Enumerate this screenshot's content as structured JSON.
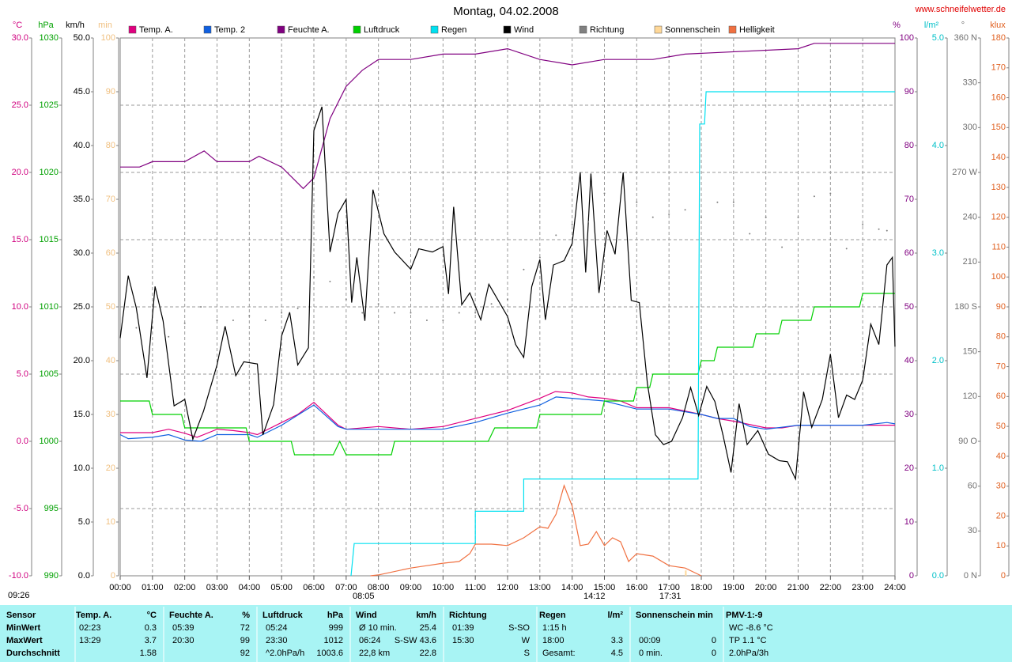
{
  "chart_data": {
    "type": "line",
    "title": "Montag, 04.02.2008",
    "source": "www.schneifelwetter.de",
    "xlim": [
      0,
      24
    ],
    "xticks": [
      {
        "value": 0,
        "label": "00:00"
      },
      {
        "value": 1,
        "label": "01:00"
      },
      {
        "value": 2,
        "label": "02:00"
      },
      {
        "value": 3,
        "label": "03:00"
      },
      {
        "value": 4,
        "label": "04:00"
      },
      {
        "value": 5,
        "label": "05:00"
      },
      {
        "value": 6,
        "label": "06:00"
      },
      {
        "value": 7,
        "label": "07:00"
      },
      {
        "value": 8,
        "label": "08:00"
      },
      {
        "value": 9,
        "label": "09:00"
      },
      {
        "value": 10,
        "label": "10:00"
      },
      {
        "value": 11,
        "label": "11:00"
      },
      {
        "value": 12,
        "label": "12:00"
      },
      {
        "value": 13,
        "label": "13:00"
      },
      {
        "value": 14,
        "label": "14:00"
      },
      {
        "value": 15,
        "label": "15:00"
      },
      {
        "value": 16,
        "label": "16:00"
      },
      {
        "value": 17,
        "label": "17:00"
      },
      {
        "value": 18,
        "label": "18:00"
      },
      {
        "value": 19,
        "label": "19:00"
      },
      {
        "value": 20,
        "label": "20:00"
      },
      {
        "value": 21,
        "label": "21:00"
      },
      {
        "value": 22,
        "label": "22:00"
      },
      {
        "value": 23,
        "label": "23:00"
      },
      {
        "value": 24,
        "label": "24:00"
      }
    ],
    "grid": true,
    "y_axes": [
      {
        "label": "°C",
        "color": "#d0007f",
        "ylim": [
          -10,
          30
        ],
        "yticks": [
          {
            "value": -10,
            "label": "-10.0"
          },
          {
            "value": -5,
            "label": "-5.0"
          },
          {
            "value": 0,
            "label": "0.0"
          },
          {
            "value": 5,
            "label": "5.0"
          },
          {
            "value": 10,
            "label": "10.0"
          },
          {
            "value": 15,
            "label": "15.0"
          },
          {
            "value": 20,
            "label": "20.0"
          },
          {
            "value": 25,
            "label": "25.0"
          },
          {
            "value": 30,
            "label": "30.0"
          }
        ]
      },
      {
        "label": "hPa",
        "color": "#00a000",
        "ylim": [
          990,
          1030
        ],
        "yticks": [
          990,
          995,
          1000,
          1005,
          1010,
          1015,
          1020,
          1025,
          1030
        ]
      },
      {
        "label": "km/h",
        "color": "#000000",
        "ylim": [
          0,
          50
        ],
        "yticks": [
          {
            "value": 0,
            "label": "0.0"
          },
          {
            "value": 5,
            "label": "5.0"
          },
          {
            "value": 10,
            "label": "10.0"
          },
          {
            "value": 15,
            "label": "15.0"
          },
          {
            "value": 20,
            "label": "20.0"
          },
          {
            "value": 25,
            "label": "25.0"
          },
          {
            "value": 30,
            "label": "30.0"
          },
          {
            "value": 35,
            "label": "35.0"
          },
          {
            "value": 40,
            "label": "40.0"
          },
          {
            "value": 45,
            "label": "45.0"
          },
          {
            "value": 50,
            "label": "50.0"
          }
        ]
      },
      {
        "label": "min",
        "color": "#f0c080",
        "ylim": [
          0,
          100
        ],
        "yticks": [
          0,
          10,
          20,
          30,
          40,
          50,
          60,
          70,
          80,
          90,
          100
        ]
      },
      {
        "label": "%",
        "color": "#800080",
        "ylim": [
          0,
          100
        ],
        "yticks": [
          0,
          10,
          20,
          30,
          40,
          50,
          60,
          70,
          80,
          90,
          100
        ]
      },
      {
        "label": "l/m²",
        "color": "#00c0c8",
        "ylim": [
          0,
          5
        ],
        "yticks": [
          {
            "value": 0,
            "label": "0.0"
          },
          {
            "value": 1,
            "label": "1.0"
          },
          {
            "value": 2,
            "label": "2.0"
          },
          {
            "value": 3,
            "label": "3.0"
          },
          {
            "value": 4,
            "label": "4.0"
          },
          {
            "value": 5,
            "label": "5.0"
          }
        ]
      },
      {
        "label": "°",
        "color": "#707070",
        "ylim": [
          0,
          360
        ],
        "yticks": [
          {
            "value": 0,
            "label": "0 N"
          },
          30,
          60,
          {
            "value": 90,
            "label": "90 O"
          },
          120,
          150,
          {
            "value": 180,
            "label": "180 S"
          },
          210,
          240,
          {
            "value": 270,
            "label": "270 W"
          },
          300,
          330,
          {
            "value": 360,
            "label": "360 N"
          }
        ]
      },
      {
        "label": "klux",
        "color": "#e06020",
        "ylim": [
          0,
          180
        ],
        "yticks": [
          0,
          10,
          20,
          30,
          40,
          50,
          60,
          70,
          80,
          90,
          100,
          110,
          120,
          130,
          140,
          150,
          160,
          170,
          180
        ]
      }
    ],
    "series": [
      {
        "name": "Temp. A.",
        "color": "#e0007f",
        "axis": 0,
        "style": "line",
        "x": [
          0,
          1,
          1.5,
          2,
          2.38,
          3,
          3.5,
          4,
          4.25,
          5,
          5.5,
          6,
          6.75,
          7,
          8,
          9,
          10,
          11,
          12,
          13,
          13.48,
          14,
          14.5,
          15,
          15.5,
          16,
          17,
          18,
          18.5,
          19,
          20,
          20.5,
          21,
          22,
          24
        ],
        "values": [
          0.65,
          0.65,
          0.9,
          0.6,
          0.3,
          0.9,
          0.8,
          0.65,
          0.5,
          1.4,
          2.0,
          2.9,
          1.2,
          0.9,
          1.1,
          0.9,
          1.1,
          1.7,
          2.3,
          3.2,
          3.7,
          3.6,
          3.3,
          3.2,
          3.0,
          2.5,
          2.5,
          2.0,
          1.7,
          1.5,
          1.0,
          1.0,
          1.2,
          1.2,
          1.2
        ]
      },
      {
        "name": "Temp. 2",
        "color": "#1060e0",
        "axis": 0,
        "style": "line",
        "x": [
          0,
          0.25,
          1,
          1.5,
          2,
          2.5,
          3,
          4,
          4.25,
          5,
          6,
          6.75,
          7,
          8,
          10,
          11,
          12,
          13,
          13.5,
          14,
          15,
          16,
          17,
          18,
          18.5,
          19,
          19.5,
          20,
          21,
          23,
          23.75,
          24
        ],
        "values": [
          0.5,
          0.2,
          0.3,
          0.5,
          0.1,
          0.0,
          0.5,
          0.5,
          0.3,
          1.2,
          2.7,
          1.1,
          0.9,
          0.9,
          0.9,
          1.4,
          2.1,
          2.7,
          3.3,
          3.2,
          3.0,
          2.4,
          2.4,
          2.0,
          1.7,
          1.7,
          1.1,
          0.9,
          1.2,
          1.2,
          1.4,
          1.3
        ]
      },
      {
        "name": "Feuchte A.",
        "color": "#800080",
        "axis": 4,
        "style": "line",
        "x": [
          0,
          0.6,
          1,
          2,
          2.6,
          3,
          4,
          4.3,
          5,
          5.67,
          6,
          6.5,
          7,
          7.5,
          8,
          9,
          10,
          11,
          12,
          13,
          14,
          15,
          16.5,
          17.5,
          21,
          21.5,
          24
        ],
        "values": [
          76,
          76,
          77,
          77,
          79,
          77,
          77,
          78,
          76,
          72,
          74,
          85,
          91,
          94,
          96,
          96,
          97,
          97,
          98,
          96,
          95,
          96,
          96,
          97,
          98,
          99,
          99
        ]
      },
      {
        "name": "Luftdruck",
        "color": "#00d000",
        "axis": 1,
        "style": "line",
        "x": [
          0,
          0.9,
          1,
          1.9,
          2,
          3.9,
          4,
          5.3,
          5.4,
          6.6,
          6.8,
          7,
          8.4,
          8.5,
          11.4,
          11.6,
          12.9,
          13,
          14.9,
          15,
          15.9,
          16,
          16.4,
          16.5,
          17.9,
          18,
          18.4,
          18.5,
          19.6,
          19.7,
          20.4,
          20.5,
          21.4,
          21.5,
          22.9,
          23,
          24
        ],
        "values": [
          1003,
          1003,
          1002,
          1002,
          1001,
          1001,
          1000,
          1000,
          999,
          999,
          1000,
          999,
          999,
          1000,
          1000,
          1001,
          1001,
          1002,
          1002,
          1003,
          1003,
          1004,
          1004,
          1005,
          1005,
          1006,
          1006,
          1007,
          1007,
          1008,
          1008,
          1009,
          1009,
          1010,
          1010,
          1011,
          1011
        ]
      },
      {
        "name": "Regen",
        "color": "#00e0f0",
        "axis": 5,
        "style": "line",
        "x": [
          7.15,
          7.25,
          7.25,
          11,
          11,
          12.5,
          12.5,
          17.9,
          17.95,
          18.1,
          18.15,
          24
        ],
        "values": [
          0,
          0.3,
          0.3,
          0.3,
          0.6,
          0.6,
          0.9,
          0.9,
          4.2,
          4.2,
          4.5,
          4.5
        ]
      },
      {
        "name": "Wind",
        "color": "#000000",
        "axis": 2,
        "style": "line",
        "x": [
          0,
          0.25,
          0.5,
          0.83,
          1.08,
          1.33,
          1.67,
          2,
          2.25,
          2.58,
          3,
          3.25,
          3.58,
          3.83,
          4.25,
          4.42,
          4.75,
          5,
          5.25,
          5.5,
          5.83,
          6,
          6.25,
          6.5,
          6.75,
          7,
          7.17,
          7.33,
          7.58,
          7.83,
          8.17,
          8.5,
          9,
          9.25,
          9.67,
          10,
          10.17,
          10.33,
          10.58,
          10.83,
          11.17,
          11.42,
          12,
          12.25,
          12.5,
          12.75,
          13,
          13.17,
          13.42,
          13.75,
          14,
          14.25,
          14.42,
          14.58,
          14.83,
          15.08,
          15.33,
          15.58,
          15.83,
          16.08,
          16.33,
          16.58,
          16.83,
          17.08,
          17.42,
          17.67,
          17.92,
          18.17,
          18.42,
          18.67,
          18.92,
          19.17,
          19.42,
          19.75,
          20.08,
          20.42,
          20.67,
          20.92,
          21.17,
          21.42,
          21.75,
          22,
          22.25,
          22.5,
          22.75,
          23,
          23.25,
          23.5,
          23.75,
          23.92,
          24
        ],
        "values": [
          22.1,
          27.9,
          24.9,
          18.4,
          26.9,
          23.7,
          15.8,
          16.4,
          12.7,
          15.3,
          19.6,
          23.2,
          18.6,
          19.9,
          19.7,
          13.1,
          15.9,
          22.3,
          24.5,
          19.6,
          21.2,
          41.4,
          43.6,
          30.1,
          33.7,
          35.0,
          25.4,
          29.6,
          23.7,
          35.9,
          31.8,
          30.1,
          28.5,
          30.4,
          30.1,
          30.6,
          26.2,
          34.3,
          25.2,
          26.3,
          23.8,
          27.1,
          24.1,
          21.5,
          20.3,
          26.9,
          29.4,
          23.8,
          28.9,
          29.3,
          30.9,
          37.5,
          28.2,
          37.4,
          26.3,
          32.1,
          29.9,
          37.5,
          25.6,
          25.4,
          17.9,
          13.1,
          12.2,
          12.5,
          14.7,
          17.5,
          14.9,
          17.6,
          16.2,
          13.1,
          9.6,
          16.0,
          12.2,
          13.5,
          11.3,
          10.7,
          10.6,
          9.0,
          17.1,
          13.8,
          16.4,
          20.6,
          14.7,
          16.8,
          16.4,
          18.2,
          23.4,
          21.5,
          28.9,
          29.6,
          21.3
        ]
      },
      {
        "name": "Richtung",
        "color": "#808080",
        "axis": 6,
        "style": "dots",
        "x": [
          0.5,
          1,
          1.5,
          2,
          2.5,
          3,
          3.5,
          4,
          4.5,
          5,
          5.5,
          6,
          6.5,
          7,
          7.5,
          8,
          8.5,
          9,
          9.5,
          10,
          10.5,
          11,
          11.5,
          12,
          12.5,
          13,
          13.5,
          14,
          14.5,
          15,
          15.5,
          16,
          16.5,
          17,
          17.5,
          18,
          18.5,
          19,
          19.5,
          20,
          20.5,
          21,
          21.5,
          22,
          22.5,
          23,
          23.5,
          23.75
        ],
        "values": [
          166,
          166,
          160,
          169,
          180,
          171,
          171,
          174,
          171,
          176,
          179,
          200,
          197,
          185,
          176,
          182,
          176,
          176,
          171,
          171,
          176,
          176,
          182,
          185,
          205,
          213,
          228,
          235,
          237,
          256,
          270,
          250,
          240,
          242,
          245,
          240,
          250,
          250,
          229,
          240,
          220,
          240,
          254,
          256,
          219,
          235,
          232,
          231
        ]
      },
      {
        "name": "Sonnenschein",
        "color": "#ffd898",
        "axis": 3,
        "style": "bar",
        "x": [
          17.52
        ],
        "values": [
          1
        ]
      },
      {
        "name": "Helligkeit",
        "color": "#f07040",
        "axis": 7,
        "style": "line",
        "x": [
          7.75,
          8,
          9,
          9.5,
          10,
          10.5,
          10.83,
          11,
          11.5,
          12,
          12.5,
          13,
          13.25,
          13.5,
          13.75,
          14,
          14.25,
          14.5,
          14.75,
          15,
          15.25,
          15.5,
          15.75,
          16,
          16.5,
          17,
          17.5,
          18
        ],
        "values": [
          0,
          0.3,
          2.6,
          3.4,
          4.2,
          4.8,
          7.4,
          10.6,
          10.6,
          10.1,
          12.7,
          16.4,
          15.9,
          20.6,
          30.2,
          23.3,
          10.1,
          10.6,
          14.8,
          10.1,
          12.7,
          11.4,
          4.8,
          7.4,
          6.6,
          3.4,
          2.6,
          0
        ]
      }
    ],
    "annotations": [
      "09:26",
      "08:05",
      "14:12",
      "17:31"
    ]
  },
  "table": {
    "header": [
      "Sensor",
      "Temp. A.",
      "°C",
      "Feuchte A.",
      "%",
      "Luftdruck",
      "hPa",
      "Wind",
      "km/h",
      "Richtung",
      null,
      "Regen",
      "l/m²",
      "Sonnenschein min",
      null,
      "PMV-1:-9"
    ],
    "rows": [
      [
        "MinWert",
        "02:23",
        "0.3",
        "05:39",
        "72",
        "05:24",
        "999",
        "Ø 10 min.",
        "25.4",
        "01:39",
        "S-SO",
        "1:15 h",
        null,
        null,
        null,
        "WC -8.6 °C"
      ],
      [
        "MaxWert",
        "13:29",
        "3.7",
        "20:30",
        "99",
        "23:30",
        "1012",
        "06:24",
        "S-SW 43.6",
        "15:30",
        "W",
        "18:00",
        "3.3",
        "00:09",
        "0",
        "TP 1.1 °C"
      ],
      [
        "Durchschnitt",
        null,
        "1.58",
        null,
        "92",
        "^2.0hPa/h",
        "1003.6",
        "22,8 km",
        "22.8",
        null,
        "S",
        "Gesamt:",
        "4.5",
        "0 min.",
        "0",
        "2.0hPa/3h"
      ]
    ]
  }
}
